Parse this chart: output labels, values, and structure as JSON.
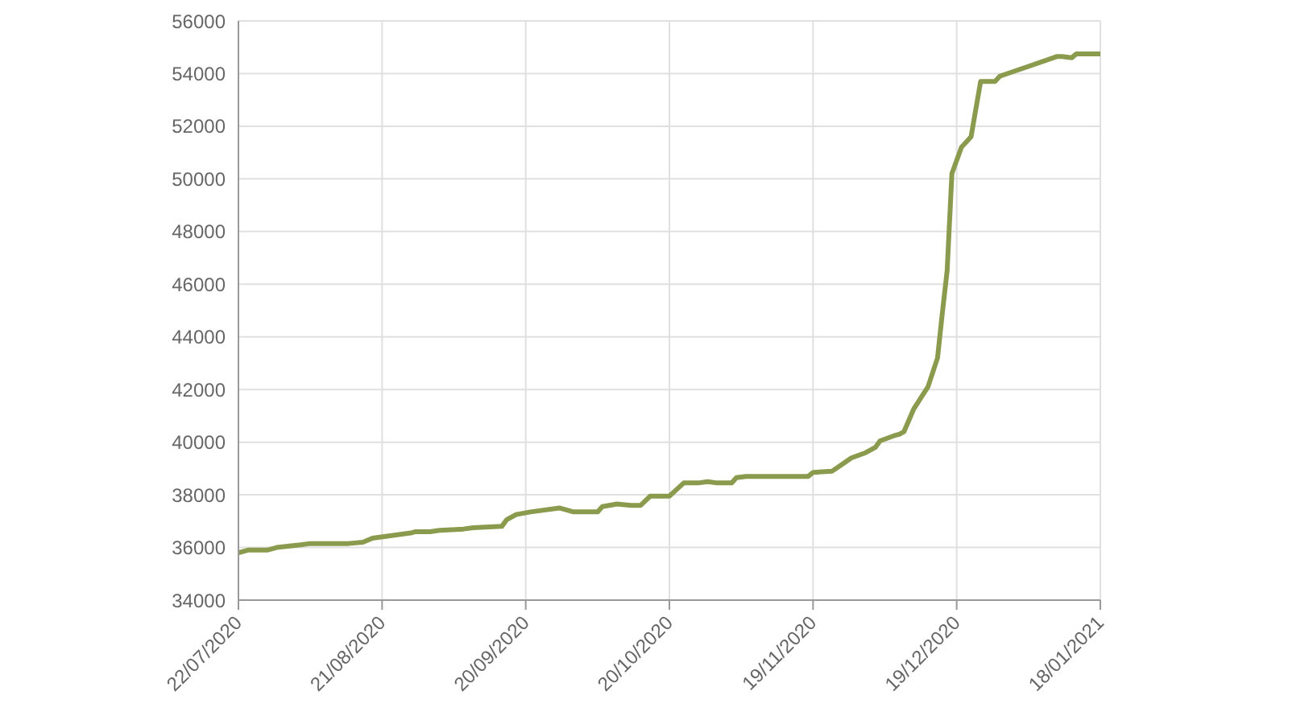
{
  "chart_data": {
    "type": "line",
    "x": [
      "2020-07-22",
      "2020-07-24",
      "2020-07-28",
      "2020-07-30",
      "2020-08-04",
      "2020-08-06",
      "2020-08-14",
      "2020-08-17",
      "2020-08-19",
      "2020-08-23",
      "2020-08-27",
      "2020-08-28",
      "2020-08-31",
      "2020-09-02",
      "2020-09-07",
      "2020-09-09",
      "2020-09-15",
      "2020-09-16",
      "2020-09-18",
      "2020-09-21",
      "2020-09-27",
      "2020-09-30",
      "2020-10-05",
      "2020-10-06",
      "2020-10-09",
      "2020-10-12",
      "2020-10-14",
      "2020-10-16",
      "2020-10-20",
      "2020-10-23",
      "2020-10-26",
      "2020-10-28",
      "2020-10-30",
      "2020-11-02",
      "2020-11-03",
      "2020-11-05",
      "2020-11-18",
      "2020-11-19",
      "2020-11-23",
      "2020-11-25",
      "2020-11-27",
      "2020-11-30",
      "2020-12-02",
      "2020-12-03",
      "2020-12-06",
      "2020-12-07",
      "2020-12-08",
      "2020-12-10",
      "2020-12-13",
      "2020-12-15",
      "2020-12-16",
      "2020-12-17",
      "2020-12-18",
      "2020-12-20",
      "2020-12-22",
      "2020-12-24",
      "2020-12-27",
      "2020-12-28",
      "2021-01-09",
      "2021-01-10",
      "2021-01-12",
      "2021-01-13",
      "2021-01-18"
    ],
    "series": [
      {
        "color": "#8b9b4e",
        "values": [
          35800,
          35900,
          35900,
          36000,
          36100,
          36150,
          36150,
          36200,
          36350,
          36450,
          36550,
          36600,
          36600,
          36650,
          36700,
          36750,
          36800,
          37050,
          37250,
          37350,
          37500,
          37350,
          37350,
          37550,
          37650,
          37600,
          37600,
          37950,
          37950,
          38450,
          38450,
          38500,
          38450,
          38450,
          38650,
          38700,
          38700,
          38850,
          38900,
          39150,
          39400,
          39600,
          39800,
          40050,
          40250,
          40300,
          40400,
          41250,
          42100,
          43200,
          44900,
          46500,
          50200,
          51200,
          51600,
          53700,
          53700,
          53900,
          54650,
          54650,
          54600,
          54750,
          54750
        ]
      }
    ],
    "xlim": [
      "2020-07-22",
      "2021-01-18"
    ],
    "xticks": [
      {
        "value": "2020-07-22",
        "label": "22/07/2020"
      },
      {
        "value": "2020-08-21",
        "label": "21/08/2020"
      },
      {
        "value": "2020-09-20",
        "label": "20/09/2020"
      },
      {
        "value": "2020-10-20",
        "label": "20/10/2020"
      },
      {
        "value": "2020-11-19",
        "label": "19/11/2020"
      },
      {
        "value": "2020-12-19",
        "label": "19/12/2020"
      },
      {
        "value": "2021-01-18",
        "label": "18/01/2021"
      }
    ],
    "ylim": [
      34000,
      56000
    ],
    "yticks": [
      34000,
      36000,
      38000,
      40000,
      42000,
      44000,
      46000,
      48000,
      50000,
      52000,
      54000,
      56000
    ],
    "grid": true,
    "legend": false,
    "marker": "none",
    "line_style": "solid"
  }
}
